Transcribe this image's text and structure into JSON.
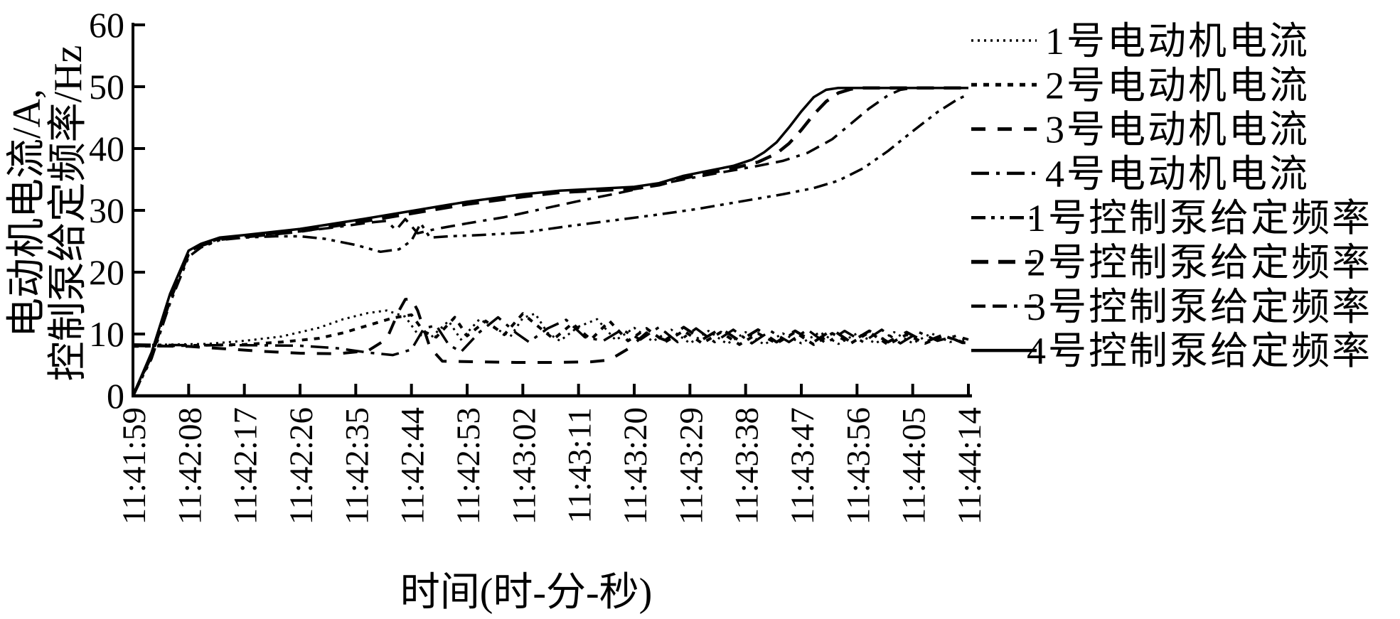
{
  "figure": {
    "background": "#ffffff",
    "line_color": "#000000"
  },
  "chart_data": {
    "type": "line",
    "title": "",
    "xlabel": "时间(时-分-秒)",
    "ylabel_line1": "电动机电流/A,",
    "ylabel_line2": "控制泵给定频率/Hz",
    "ylabel": "电动机电流/A, 控制泵给定频率/Hz",
    "grid": false,
    "legend_position": "right",
    "ylim": [
      0,
      60
    ],
    "y_ticks": [
      0,
      10,
      20,
      30,
      40,
      50,
      60
    ],
    "x_tick_seconds": [
      0,
      9,
      18,
      27,
      36,
      45,
      54,
      63,
      72,
      81,
      90,
      99,
      108,
      117,
      126,
      135
    ],
    "x_tick_labels": [
      "11:41:59",
      "11:42:08",
      "11:42:17",
      "11:42:26",
      "11:42:35",
      "11:42:44",
      "11:42:53",
      "11:43:02",
      "11:43:11",
      "11:43:20",
      "11:43:29",
      "11:43:38",
      "11:43:47",
      "11:43:56",
      "11:44:05",
      "11:44:14"
    ],
    "x_range_seconds": [
      0,
      135
    ],
    "series": [
      {
        "name": "1号电动机电流",
        "unit": "A",
        "linestyle": "dotted-fine",
        "points": [
          [
            0,
            8.2
          ],
          [
            6,
            8.3
          ],
          [
            12,
            8.4
          ],
          [
            18,
            8.9
          ],
          [
            24,
            9.6
          ],
          [
            30,
            11
          ],
          [
            34,
            12.4
          ],
          [
            38,
            13.4
          ],
          [
            41,
            13.8
          ],
          [
            44,
            12.8
          ],
          [
            46,
            10
          ],
          [
            48,
            9.3
          ],
          [
            51,
            12.1
          ],
          [
            53,
            9.1
          ],
          [
            56,
            12.4
          ],
          [
            58,
            11.2
          ],
          [
            61,
            9.6
          ],
          [
            63,
            12.6
          ],
          [
            65,
            13.3
          ],
          [
            67,
            10.2
          ],
          [
            69,
            8.9
          ],
          [
            72,
            11.2
          ],
          [
            75,
            12.4
          ],
          [
            78,
            9
          ],
          [
            81,
            11
          ],
          [
            84,
            8.8
          ],
          [
            87,
            10.7
          ],
          [
            90,
            8.5
          ],
          [
            93,
            10.5
          ],
          [
            96,
            8.4
          ],
          [
            99,
            10.3
          ],
          [
            102,
            8.3
          ],
          [
            105,
            10.1
          ],
          [
            108,
            8.5
          ],
          [
            111,
            10.3
          ],
          [
            114,
            8.4
          ],
          [
            117,
            10.1
          ],
          [
            120,
            8.5
          ],
          [
            123,
            10.3
          ],
          [
            126,
            8.5
          ],
          [
            129,
            10.1
          ],
          [
            132,
            8.7
          ],
          [
            135,
            9.3
          ]
        ]
      },
      {
        "name": "2号电动机电流",
        "unit": "A",
        "linestyle": "dotted",
        "points": [
          [
            0,
            8
          ],
          [
            6,
            8.1
          ],
          [
            12,
            8.2
          ],
          [
            18,
            8.3
          ],
          [
            24,
            8.7
          ],
          [
            30,
            9.3
          ],
          [
            34,
            10.2
          ],
          [
            38,
            11.4
          ],
          [
            42,
            12.6
          ],
          [
            45,
            13.1
          ],
          [
            47,
            10.4
          ],
          [
            49,
            9.5
          ],
          [
            52,
            12.7
          ],
          [
            54,
            9.7
          ],
          [
            57,
            12.1
          ],
          [
            60,
            9.9
          ],
          [
            63,
            13.3
          ],
          [
            66,
            10.8
          ],
          [
            68,
            9.2
          ],
          [
            71,
            11.7
          ],
          [
            74,
            9.1
          ],
          [
            77,
            12.1
          ],
          [
            80,
            8.9
          ],
          [
            83,
            10.9
          ],
          [
            86,
            8.7
          ],
          [
            89,
            10.5
          ],
          [
            92,
            8.5
          ],
          [
            95,
            10.3
          ],
          [
            98,
            8.3
          ],
          [
            101,
            10.1
          ],
          [
            104,
            8.5
          ],
          [
            107,
            10.3
          ],
          [
            110,
            8.3
          ],
          [
            113,
            10.1
          ],
          [
            116,
            8.5
          ],
          [
            119,
            10.3
          ],
          [
            122,
            8.3
          ],
          [
            125,
            9.9
          ],
          [
            128,
            8.5
          ],
          [
            131,
            9.7
          ],
          [
            134,
            8.7
          ],
          [
            135,
            8.9
          ]
        ]
      },
      {
        "name": "3号电动机电流",
        "unit": "A",
        "linestyle": "dashed",
        "points": [
          [
            0,
            8.1
          ],
          [
            9,
            8
          ],
          [
            15,
            7.6
          ],
          [
            21,
            7.2
          ],
          [
            27,
            6.9
          ],
          [
            33,
            6.8
          ],
          [
            38,
            7.3
          ],
          [
            41,
            9.2
          ],
          [
            43,
            13.8
          ],
          [
            44,
            15.6
          ],
          [
            45,
            15.7
          ],
          [
            46,
            13.8
          ],
          [
            48,
            7.8
          ],
          [
            50,
            5.6
          ],
          [
            56,
            5.5
          ],
          [
            62,
            5.4
          ],
          [
            68,
            5.4
          ],
          [
            74,
            5.5
          ],
          [
            77,
            5.8
          ],
          [
            80,
            7.6
          ],
          [
            83,
            10.2
          ],
          [
            86,
            9
          ],
          [
            89,
            11.1
          ],
          [
            92,
            9.1
          ],
          [
            95,
            10.9
          ],
          [
            98,
            8.9
          ],
          [
            101,
            10.7
          ],
          [
            104,
            8.7
          ],
          [
            107,
            10.5
          ],
          [
            110,
            8.7
          ],
          [
            113,
            10.7
          ],
          [
            116,
            8.7
          ],
          [
            119,
            10.5
          ],
          [
            122,
            8.7
          ],
          [
            125,
            10.3
          ],
          [
            128,
            8.7
          ],
          [
            131,
            9.9
          ],
          [
            134,
            8.6
          ],
          [
            135,
            8.6
          ]
        ]
      },
      {
        "name": "4号电动机电流",
        "unit": "A",
        "linestyle": "dashdot",
        "points": [
          [
            0,
            8.3
          ],
          [
            9,
            8.2
          ],
          [
            18,
            8.2
          ],
          [
            27,
            8.1
          ],
          [
            33,
            7.7
          ],
          [
            38,
            7
          ],
          [
            42,
            6.6
          ],
          [
            45,
            7.5
          ],
          [
            47,
            10.9
          ],
          [
            49,
            11.4
          ],
          [
            51,
            8.3
          ],
          [
            53,
            7.1
          ],
          [
            56,
            10.3
          ],
          [
            59,
            12.7
          ],
          [
            62,
            10.1
          ],
          [
            64,
            8.7
          ],
          [
            67,
            10.9
          ],
          [
            70,
            12.3
          ],
          [
            73,
            9.5
          ],
          [
            76,
            8.9
          ],
          [
            79,
            10.7
          ],
          [
            82,
            9.1
          ],
          [
            85,
            11.1
          ],
          [
            88,
            8.7
          ],
          [
            91,
            10.9
          ],
          [
            94,
            8.7
          ],
          [
            97,
            10.7
          ],
          [
            100,
            8.5
          ],
          [
            103,
            10.5
          ],
          [
            106,
            8.7
          ],
          [
            109,
            10.7
          ],
          [
            112,
            8.5
          ],
          [
            115,
            10.5
          ],
          [
            118,
            8.7
          ],
          [
            121,
            10.7
          ],
          [
            124,
            8.5
          ],
          [
            127,
            10.3
          ],
          [
            130,
            8.9
          ],
          [
            133,
            9.7
          ],
          [
            135,
            9.1
          ]
        ]
      },
      {
        "name": "1号控制泵给定频率",
        "unit": "Hz",
        "linestyle": "dashdotdot",
        "points": [
          [
            0,
            0
          ],
          [
            3,
            6
          ],
          [
            6,
            15
          ],
          [
            9,
            22.5
          ],
          [
            11,
            24
          ],
          [
            14,
            25.2
          ],
          [
            18,
            25.6
          ],
          [
            23,
            25.8
          ],
          [
            27,
            25.8
          ],
          [
            31,
            25.4
          ],
          [
            36,
            24.4
          ],
          [
            40,
            23.3
          ],
          [
            43,
            23.7
          ],
          [
            45,
            25.1
          ],
          [
            46.5,
            27.9
          ],
          [
            48,
            25.6
          ],
          [
            51,
            25.8
          ],
          [
            56,
            26
          ],
          [
            63,
            26.4
          ],
          [
            70,
            27.4
          ],
          [
            77,
            28.3
          ],
          [
            84,
            29.2
          ],
          [
            91,
            30.2
          ],
          [
            98,
            31.4
          ],
          [
            105,
            32.6
          ],
          [
            110,
            33.6
          ],
          [
            114,
            34.8
          ],
          [
            118,
            36.8
          ],
          [
            122,
            39.6
          ],
          [
            126,
            42.8
          ],
          [
            130,
            45.9
          ],
          [
            133,
            47.8
          ],
          [
            135,
            48.8
          ]
        ]
      },
      {
        "name": "2号控制泵给定频率",
        "unit": "Hz",
        "linestyle": "longdash",
        "points": [
          [
            0,
            0
          ],
          [
            3,
            6.5
          ],
          [
            6,
            15.5
          ],
          [
            9,
            23
          ],
          [
            11,
            24.3
          ],
          [
            14,
            25.3
          ],
          [
            18,
            25.7
          ],
          [
            27,
            26.6
          ],
          [
            36,
            28
          ],
          [
            45,
            29.5
          ],
          [
            54,
            31
          ],
          [
            63,
            32.2
          ],
          [
            69,
            32.9
          ],
          [
            75,
            33.2
          ],
          [
            81,
            33.5
          ],
          [
            85,
            34.1
          ],
          [
            89,
            35.2
          ],
          [
            93,
            36
          ],
          [
            97,
            36.8
          ],
          [
            101,
            37.8
          ],
          [
            104,
            39.2
          ],
          [
            106,
            40.8
          ],
          [
            108,
            43
          ],
          [
            110,
            45.5
          ],
          [
            112,
            47.6
          ],
          [
            114,
            49
          ],
          [
            116,
            49.6
          ],
          [
            118,
            49.8
          ],
          [
            135,
            49.8
          ]
        ]
      },
      {
        "name": "3号控制泵给定频率",
        "unit": "Hz",
        "linestyle": "dashdashdot",
        "points": [
          [
            0,
            0
          ],
          [
            3,
            6.5
          ],
          [
            6,
            16
          ],
          [
            9,
            23.2
          ],
          [
            11,
            24.4
          ],
          [
            14,
            25.4
          ],
          [
            18,
            25.8
          ],
          [
            27,
            26.6
          ],
          [
            33,
            27.3
          ],
          [
            38,
            28
          ],
          [
            41,
            28.3
          ],
          [
            42.5,
            26.8
          ],
          [
            44,
            28.6
          ],
          [
            46,
            26.3
          ],
          [
            49,
            27
          ],
          [
            54,
            27.9
          ],
          [
            60,
            28.9
          ],
          [
            66,
            30.2
          ],
          [
            72,
            31.5
          ],
          [
            78,
            32.7
          ],
          [
            84,
            34
          ],
          [
            90,
            35.2
          ],
          [
            96,
            36.3
          ],
          [
            101,
            37.2
          ],
          [
            105,
            38
          ],
          [
            109,
            39.3
          ],
          [
            113,
            41.5
          ],
          [
            116,
            44
          ],
          [
            119,
            46.5
          ],
          [
            122,
            48.6
          ],
          [
            124,
            49.5
          ],
          [
            126,
            49.8
          ],
          [
            135,
            49.8
          ]
        ]
      },
      {
        "name": "4号控制泵给定频率",
        "unit": "Hz",
        "linestyle": "solid",
        "points": [
          [
            0,
            0
          ],
          [
            3,
            7
          ],
          [
            6,
            16.5
          ],
          [
            9,
            23.5
          ],
          [
            11,
            24.6
          ],
          [
            14,
            25.6
          ],
          [
            18,
            26
          ],
          [
            27,
            27
          ],
          [
            36,
            28.4
          ],
          [
            45,
            29.9
          ],
          [
            54,
            31.4
          ],
          [
            63,
            32.6
          ],
          [
            69,
            33.2
          ],
          [
            75,
            33.5
          ],
          [
            81,
            33.8
          ],
          [
            85,
            34.4
          ],
          [
            89,
            35.6
          ],
          [
            93,
            36.4
          ],
          [
            97,
            37.2
          ],
          [
            100,
            38.2
          ],
          [
            102,
            39.4
          ],
          [
            104,
            41
          ],
          [
            106,
            43.4
          ],
          [
            108,
            46
          ],
          [
            110,
            48.3
          ],
          [
            112,
            49.5
          ],
          [
            114,
            49.8
          ],
          [
            135,
            49.8
          ]
        ]
      }
    ]
  }
}
